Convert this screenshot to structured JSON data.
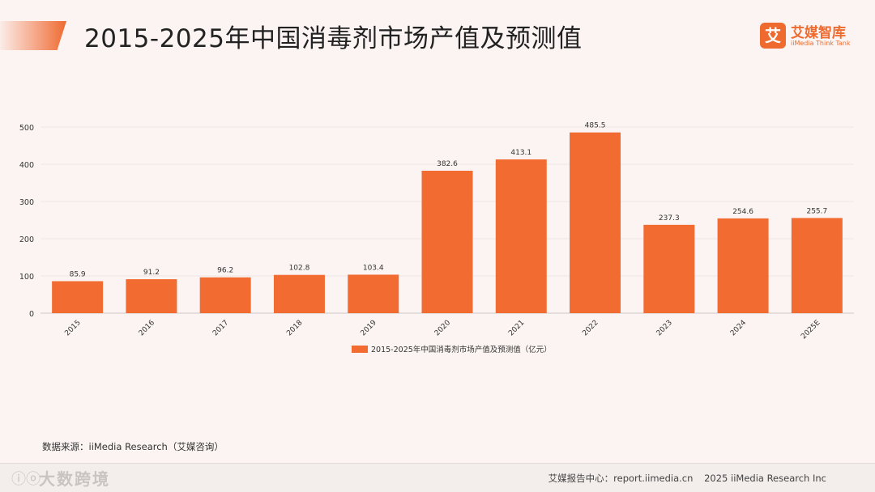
{
  "header": {
    "title": "2015-2025年中国消毒剂市场产值及预测值"
  },
  "logo": {
    "mark": "艾",
    "name": "艾媒智库",
    "subtitle": "iiMedia Think Tank"
  },
  "chart_data": {
    "type": "bar",
    "title": "",
    "categories": [
      "2015",
      "2016",
      "2017",
      "2018",
      "2019",
      "2020",
      "2021",
      "2022",
      "2023",
      "2024",
      "2025E"
    ],
    "series": [
      {
        "name": "2015-2025年中国消毒剂市场产值及预测值（亿元）",
        "values": [
          85.9,
          91.2,
          96.2,
          102.8,
          103.4,
          382.6,
          413.1,
          485.5,
          237.3,
          254.6,
          255.7
        ]
      }
    ],
    "value_labels": [
      "85.9",
      "91.2",
      "96.2",
      "102.8",
      "103.4",
      "382.6",
      "413.1",
      "485.5",
      "237.3",
      "254.6",
      "255.7"
    ],
    "y_ticks": [
      "0",
      "100",
      "200",
      "300",
      "400",
      "500"
    ],
    "ylim": [
      0,
      500
    ],
    "grid": true,
    "legend_position": "bottom-center",
    "colors": {
      "bar": "#f26b30",
      "grid": "#ece6e4",
      "text": "#333333"
    }
  },
  "source": "数据来源：iiMedia Research（艾媒咨询）",
  "footer": {
    "watermark_icon": "ⓘⓞ",
    "watermark": "大数跨境",
    "center_label": "艾媒报告中心：",
    "url": "report.iimedia.cn",
    "copyright": "2025 iiMedia Research Inc"
  }
}
